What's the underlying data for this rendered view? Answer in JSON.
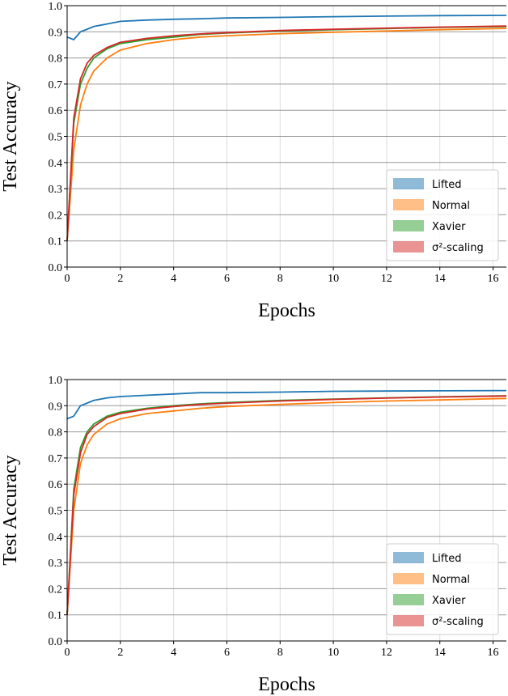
{
  "chart_data": [
    {
      "type": "line",
      "xlabel": "Epochs",
      "ylabel": "Test Accuracy",
      "x": [
        0,
        0.25,
        0.5,
        0.75,
        1,
        1.5,
        2,
        3,
        4,
        5,
        6,
        8,
        10,
        12,
        14,
        16.5
      ],
      "xlim": [
        0,
        16.5
      ],
      "xticks": [
        0,
        2,
        4,
        6,
        8,
        10,
        12,
        14,
        16
      ],
      "ylim": [
        0,
        1
      ],
      "yticks": [
        {
          "value": 0,
          "label": "0.0"
        },
        0.1,
        0.2,
        0.3,
        0.4,
        0.5,
        0.6,
        0.7,
        0.8,
        0.9,
        {
          "value": 1,
          "label": "1.0"
        }
      ],
      "grid": true,
      "legend": "lower right",
      "series": [
        {
          "name": "Lifted",
          "color": "#1f77b4",
          "values": [
            0.88,
            0.87,
            0.9,
            0.91,
            0.92,
            0.93,
            0.94,
            0.945,
            0.948,
            0.95,
            0.953,
            0.955,
            0.958,
            0.96,
            0.962,
            0.963
          ]
        },
        {
          "name": "Normal",
          "color": "#ff7f0e",
          "values": [
            0.1,
            0.45,
            0.62,
            0.7,
            0.75,
            0.8,
            0.83,
            0.855,
            0.87,
            0.88,
            0.885,
            0.893,
            0.898,
            0.903,
            0.908,
            0.913
          ]
        },
        {
          "name": "Xavier",
          "color": "#2ca02c",
          "values": [
            0.1,
            0.55,
            0.7,
            0.76,
            0.8,
            0.835,
            0.855,
            0.87,
            0.88,
            0.89,
            0.895,
            0.903,
            0.908,
            0.912,
            0.917,
            0.92
          ]
        },
        {
          "name": "σ²-scaling",
          "color": "#d62728",
          "values": [
            0.1,
            0.57,
            0.72,
            0.78,
            0.81,
            0.84,
            0.86,
            0.875,
            0.885,
            0.892,
            0.897,
            0.905,
            0.91,
            0.914,
            0.918,
            0.922
          ]
        }
      ]
    },
    {
      "type": "line",
      "xlabel": "Epochs",
      "ylabel": "Test Accuracy",
      "x": [
        0,
        0.25,
        0.5,
        0.75,
        1,
        1.5,
        2,
        3,
        4,
        5,
        6,
        8,
        10,
        12,
        14,
        16.5
      ],
      "xlim": [
        0,
        16.5
      ],
      "xticks": [
        0,
        2,
        4,
        6,
        8,
        10,
        12,
        14,
        16
      ],
      "ylim": [
        0,
        1
      ],
      "yticks": [
        {
          "value": 0,
          "label": "0.0"
        },
        0.1,
        0.2,
        0.3,
        0.4,
        0.5,
        0.6,
        0.7,
        0.8,
        0.9,
        {
          "value": 1,
          "label": "1.0"
        }
      ],
      "grid": true,
      "legend": "lower right",
      "series": [
        {
          "name": "Lifted",
          "color": "#1f77b4",
          "values": [
            0.85,
            0.86,
            0.9,
            0.91,
            0.92,
            0.93,
            0.935,
            0.94,
            0.945,
            0.95,
            0.95,
            0.952,
            0.955,
            0.956,
            0.957,
            0.958
          ]
        },
        {
          "name": "Normal",
          "color": "#ff7f0e",
          "values": [
            0.1,
            0.5,
            0.68,
            0.75,
            0.79,
            0.83,
            0.85,
            0.87,
            0.88,
            0.89,
            0.897,
            0.905,
            0.912,
            0.918,
            0.922,
            0.928
          ]
        },
        {
          "name": "Xavier",
          "color": "#2ca02c",
          "values": [
            0.1,
            0.58,
            0.74,
            0.8,
            0.83,
            0.86,
            0.875,
            0.89,
            0.9,
            0.907,
            0.912,
            0.92,
            0.925,
            0.93,
            0.934,
            0.938
          ]
        },
        {
          "name": "σ²-scaling",
          "color": "#d62728",
          "values": [
            0.1,
            0.56,
            0.72,
            0.79,
            0.82,
            0.855,
            0.87,
            0.887,
            0.897,
            0.905,
            0.91,
            0.918,
            0.924,
            0.929,
            0.933,
            0.937
          ]
        }
      ]
    }
  ]
}
